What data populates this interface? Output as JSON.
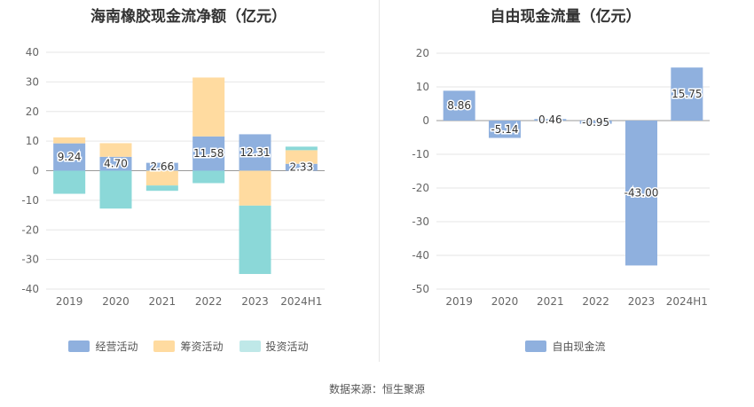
{
  "source_note": "数据来源：恒生聚源",
  "chart_data": [
    {
      "type": "bar",
      "stacked": true,
      "title": "海南橡胶现金流净额（亿元）",
      "categories": [
        "2019",
        "2020",
        "2021",
        "2022",
        "2023",
        "2024H1"
      ],
      "ylim": [
        -40,
        40
      ],
      "yticks": [
        40,
        30,
        20,
        10,
        0,
        -10,
        -20,
        -30,
        -40
      ],
      "grid": true,
      "legend_position": "bottom",
      "series": [
        {
          "name": "经营活动",
          "color": "#8fb0de",
          "values": [
            9.24,
            4.7,
            2.66,
            11.58,
            12.31,
            2.33
          ],
          "labels": [
            "9.24",
            "4.70",
            "2.66",
            "11.58",
            "12.31",
            "2.33"
          ]
        },
        {
          "name": "筹资活动",
          "color": "#ffdba0",
          "values": [
            2.0,
            4.6,
            -5.0,
            19.9,
            -11.8,
            4.6
          ]
        },
        {
          "name": "投资活动",
          "color": "#8bd8d8",
          "values": [
            -7.8,
            -12.8,
            -1.8,
            -4.2,
            -23.1,
            1.2
          ]
        }
      ]
    },
    {
      "type": "bar",
      "title": "自由现金流量（亿元）",
      "categories": [
        "2019",
        "2020",
        "2021",
        "2022",
        "2023",
        "2024H1"
      ],
      "ylim": [
        -50,
        20
      ],
      "yticks": [
        20,
        10,
        0,
        -10,
        -20,
        -30,
        -40,
        -50
      ],
      "grid": true,
      "legend_position": "bottom",
      "series": [
        {
          "name": "自由现金流",
          "color": "#8fb0de",
          "values": [
            8.86,
            -5.14,
            0.46,
            -0.95,
            -43.0,
            15.75
          ],
          "labels": [
            "8.86",
            "-5.14",
            "0.46",
            "-0.95",
            "-43.00",
            "15.75"
          ]
        }
      ]
    }
  ]
}
